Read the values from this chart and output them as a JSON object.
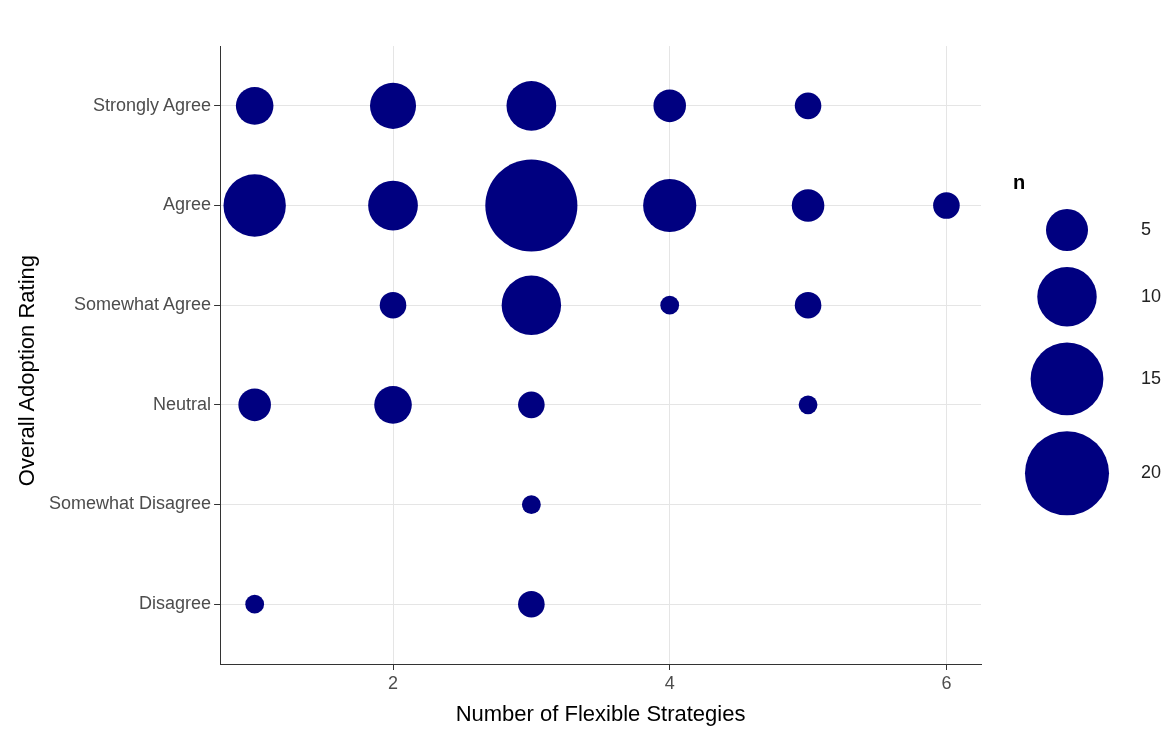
{
  "chart_data": {
    "type": "bubble",
    "orientation": "horizontal",
    "xlabel": "Number of Flexible Strategies",
    "ylabel": "Overall Adoption Rating",
    "legend_title": "n",
    "grid": true,
    "categories": [
      "Strongly Agree",
      "Agree",
      "Somewhat Agree",
      "Neutral",
      "Somewhat Disagree",
      "Disagree"
    ],
    "xlim": [
      0.75,
      6.25
    ],
    "xticks": [
      2,
      4,
      6
    ],
    "size_legend": [
      5,
      10,
      15,
      20
    ],
    "series": [
      {
        "color": "#000080",
        "x": [
          "Strongly Agree",
          "Strongly Agree",
          "Strongly Agree",
          "Strongly Agree",
          "Strongly Agree",
          "Agree",
          "Agree",
          "Agree",
          "Agree",
          "Agree",
          "Agree",
          "Somewhat Agree",
          "Somewhat Agree",
          "Somewhat Agree",
          "Somewhat Agree",
          "Neutral",
          "Neutral",
          "Neutral",
          "Neutral",
          "Somewhat Disagree",
          "Disagree",
          "Disagree"
        ],
        "values": [
          1,
          2,
          3,
          4,
          5,
          1,
          2,
          3,
          4,
          5,
          6,
          2,
          3,
          4,
          5,
          1,
          2,
          3,
          5,
          3,
          1,
          3
        ],
        "sizes": [
          4,
          6,
          7,
          3,
          2,
          11,
          7,
          24,
          8,
          3,
          2,
          2,
          10,
          1,
          2,
          3,
          4,
          2,
          1,
          1,
          1,
          2
        ]
      }
    ]
  }
}
